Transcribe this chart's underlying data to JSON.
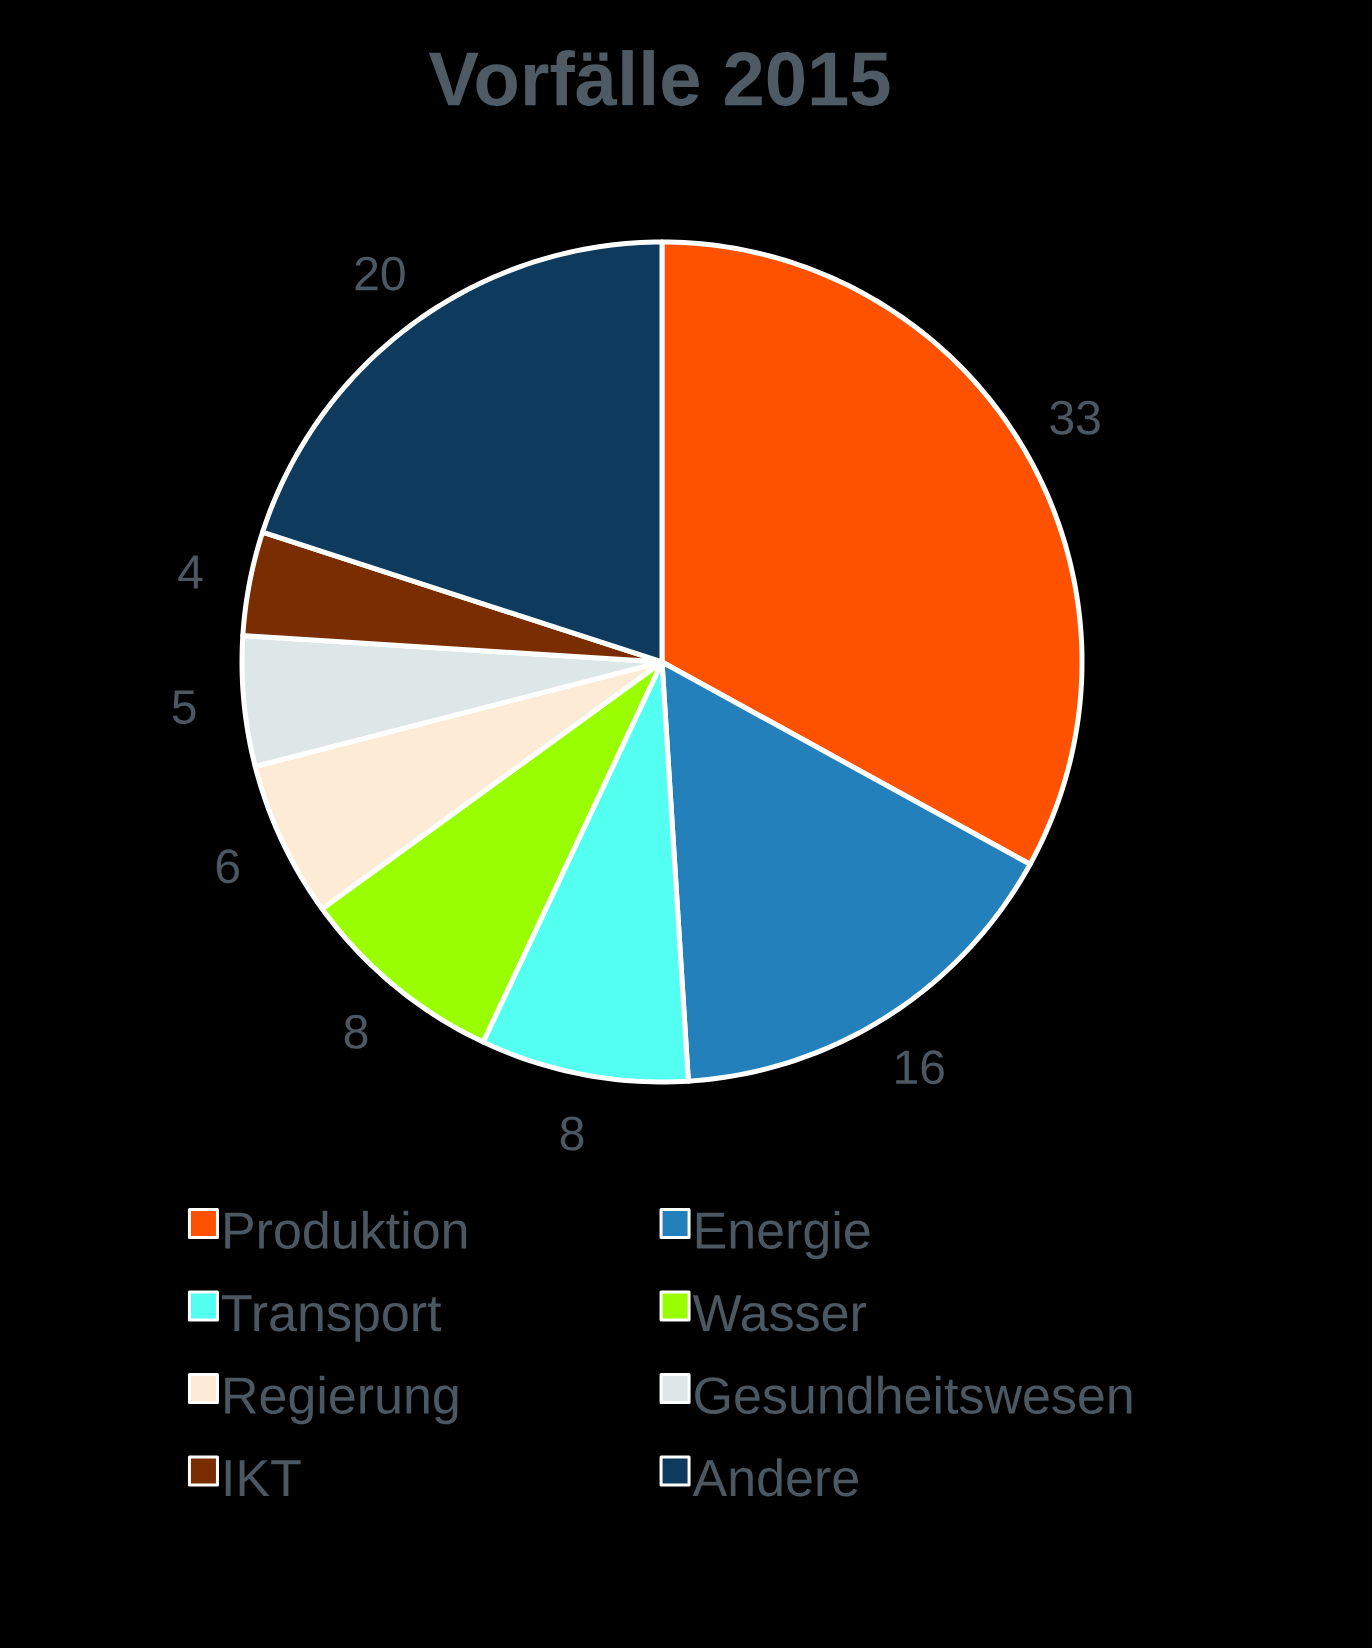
{
  "chart_data": {
    "type": "pie",
    "title": "Vorfälle 2015",
    "categories": [
      "Produktion",
      "Energie",
      "Transport",
      "Wasser",
      "Regierung",
      "Gesundheitswesen",
      "IKT",
      "Andere"
    ],
    "values": [
      33,
      16,
      8,
      8,
      6,
      5,
      4,
      20
    ],
    "colors": [
      "#ff5200",
      "#2380ba",
      "#52fff0",
      "#99ff00",
      "#feebd6",
      "#dde7e8",
      "#7a2e00",
      "#0e3a5e"
    ],
    "data_labels": true,
    "legend": "bottom"
  }
}
